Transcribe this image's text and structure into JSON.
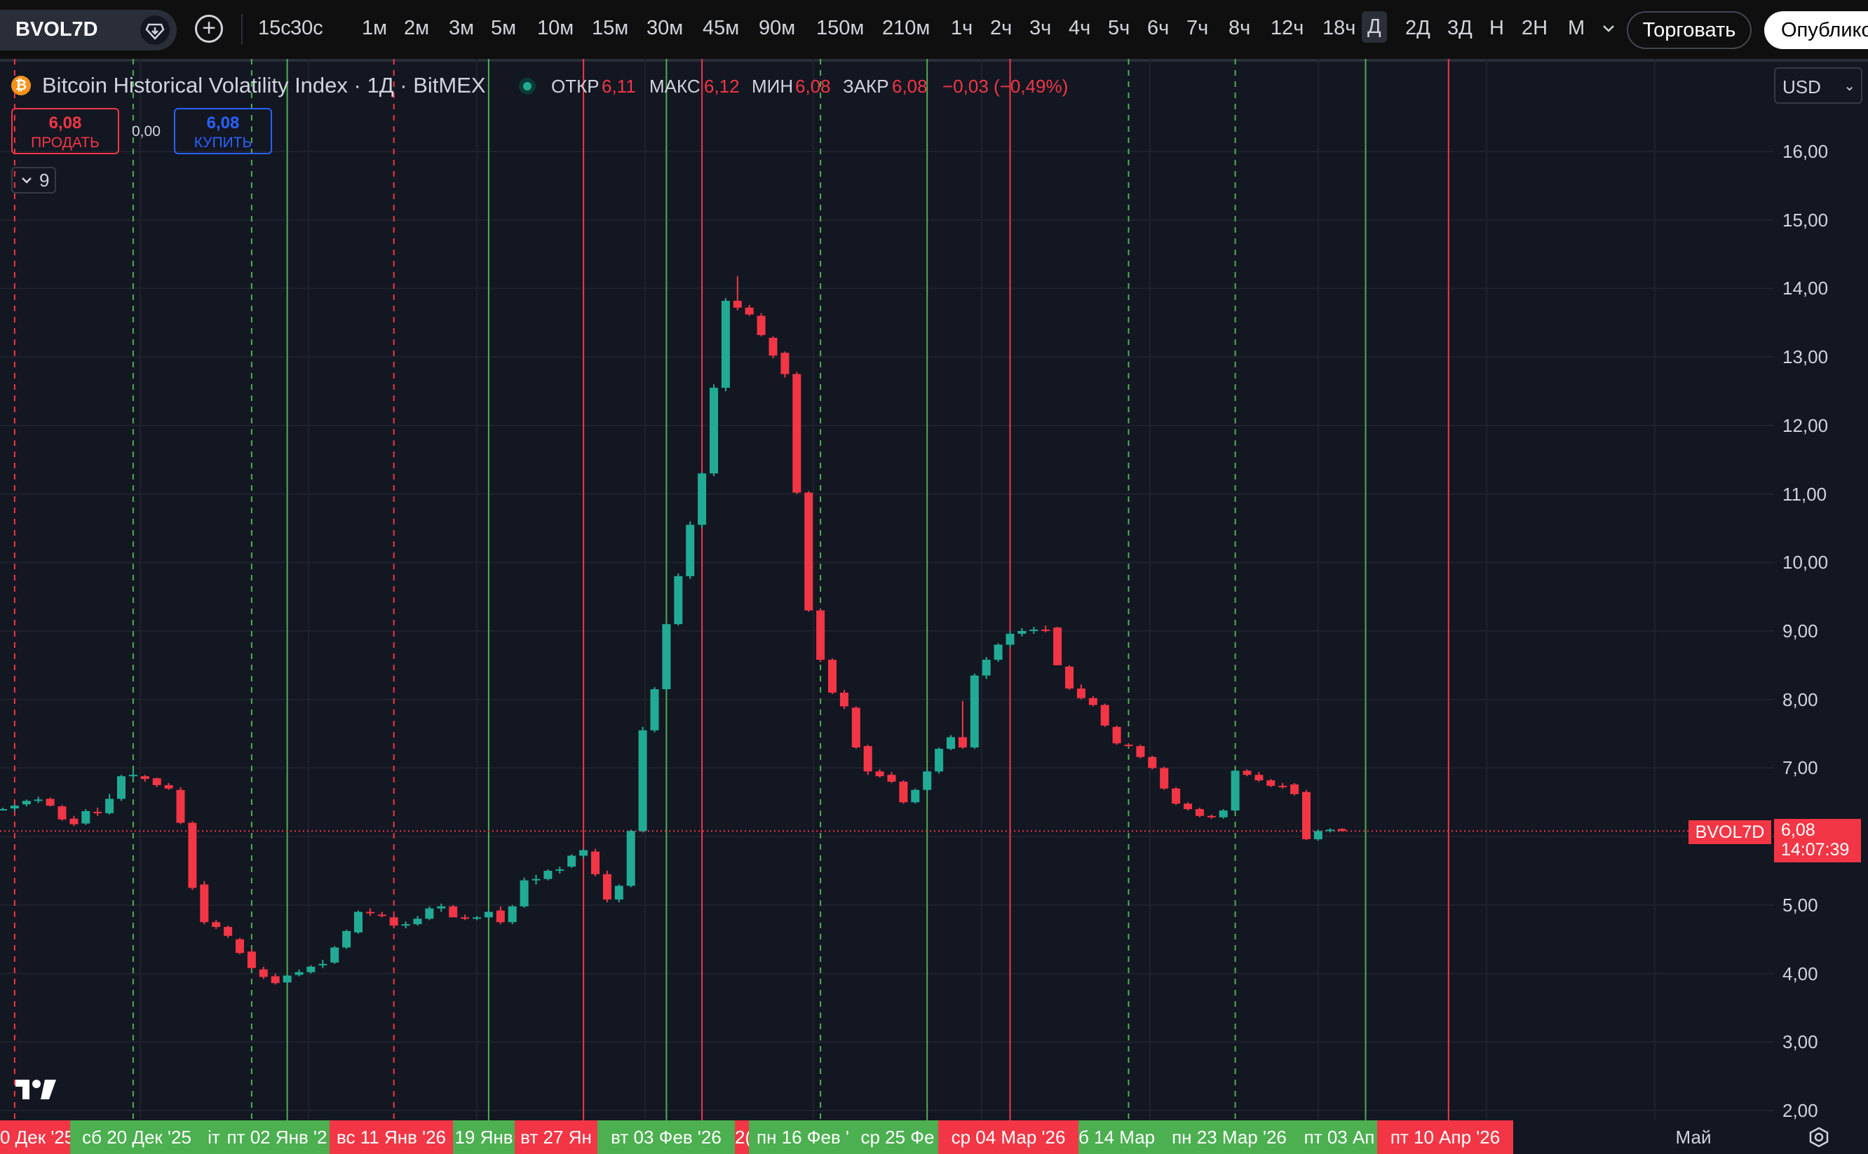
{
  "toolbar": {
    "symbol": "BVOL7D",
    "intervals": [
      "15с",
      "30с",
      "1м",
      "2м",
      "3м",
      "5м",
      "10м",
      "15м",
      "30м",
      "45м",
      "90м",
      "150м",
      "210м",
      "1ч",
      "2ч",
      "3ч",
      "4ч",
      "5ч",
      "6ч",
      "7ч",
      "8ч",
      "12ч",
      "18ч",
      "Д",
      "2Д",
      "3Д",
      "Н",
      "2Н",
      "М"
    ],
    "active_interval": "Д",
    "trade_label": "Торговать",
    "publish_label": "Опублико"
  },
  "legend": {
    "title": "Bitcoin Historical Volatility Index · 1Д · BitMEX",
    "open_label": "ОТКР",
    "open": "6,11",
    "high_label": "МАКС",
    "high": "6,12",
    "low_label": "МИН",
    "low": "6,08",
    "close_label": "ЗАКР",
    "close": "6,08",
    "change": "−0,03 (−0,49%)"
  },
  "trade_panel": {
    "sell_price": "6,08",
    "sell_label": "ПРОДАТЬ",
    "spread": "0,00",
    "buy_price": "6,08",
    "buy_label": "КУПИТЬ"
  },
  "indicators_count": "9",
  "price_axis": {
    "currency": "USD",
    "last_symbol": "BVOL7D",
    "last_price": "6,08",
    "countdown": "14:07:39"
  },
  "colors": {
    "up": "#22ab94",
    "down": "#f23645",
    "background": "#131722",
    "vline_green": "#4caf50",
    "vline_red": "#f23645"
  },
  "time_axis": {
    "labels": [
      {
        "text": "0 Дек '25",
        "kind": "down"
      },
      {
        "text": "сб 20 Дек '25",
        "kind": "up"
      },
      {
        "text": "іт",
        "kind": "up"
      },
      {
        "text": "пт 02 Янв '2",
        "kind": "up"
      },
      {
        "text": "вс 11 Янв '26",
        "kind": "down"
      },
      {
        "text": "19 Янв",
        "kind": "up"
      },
      {
        "text": "вт 27 Ян",
        "kind": "down"
      },
      {
        "text": "вт 03 Фев '26",
        "kind": "up"
      },
      {
        "text": "2(",
        "kind": "down"
      },
      {
        "text": "пн 16 Фев '",
        "kind": "up"
      },
      {
        "text": "ср 25 Фе",
        "kind": "up"
      },
      {
        "text": "ср 04 Мар '26",
        "kind": "down"
      },
      {
        "text": "б 14 Мар '",
        "kind": "up"
      },
      {
        "text": "пн 23 Мар '26",
        "kind": "up"
      },
      {
        "text": "пт 03 Ап",
        "kind": "up"
      },
      {
        "text": "пт 10 Апр '26",
        "kind": "down"
      },
      {
        "text": "Май",
        "kind": "plain"
      }
    ]
  },
  "chart_data": {
    "type": "candlestick",
    "title": "Bitcoin Historical Volatility Index · 1Д · BitMEX",
    "y_ticks": [
      "16,00",
      "15,00",
      "14,00",
      "13,00",
      "12,00",
      "11,00",
      "10,00",
      "9,00",
      "8,00",
      "7,00",
      "6,00",
      "5,00",
      "4,00",
      "3,00",
      "2,00"
    ],
    "ylim": [
      1.9,
      16.8
    ],
    "x_range_days": [
      0,
      148
    ],
    "grid": true,
    "last_price": 6.08,
    "candles": [
      [
        0,
        6.4,
        6.42,
        6.38,
        6.4
      ],
      [
        1,
        6.41,
        6.47,
        6.37,
        6.45
      ],
      [
        2,
        6.47,
        6.54,
        6.44,
        6.52
      ],
      [
        3,
        6.53,
        6.58,
        6.49,
        6.54
      ],
      [
        4,
        6.55,
        6.57,
        6.44,
        6.45
      ],
      [
        5,
        6.44,
        6.46,
        6.23,
        6.25
      ],
      [
        6,
        6.26,
        6.3,
        6.15,
        6.18
      ],
      [
        7,
        6.19,
        6.4,
        6.17,
        6.37
      ],
      [
        8,
        6.36,
        6.42,
        6.3,
        6.35
      ],
      [
        9,
        6.34,
        6.62,
        6.32,
        6.55
      ],
      [
        10,
        6.55,
        6.9,
        6.52,
        6.88
      ],
      [
        11,
        6.9,
        6.96,
        6.84,
        6.9
      ],
      [
        12,
        6.88,
        6.9,
        6.8,
        6.84
      ],
      [
        13,
        6.85,
        6.86,
        6.72,
        6.75
      ],
      [
        14,
        6.75,
        6.78,
        6.68,
        6.7
      ],
      [
        15,
        6.68,
        6.72,
        6.18,
        6.2
      ],
      [
        16,
        6.2,
        6.22,
        5.22,
        5.25
      ],
      [
        17,
        5.3,
        5.35,
        4.72,
        4.75
      ],
      [
        18,
        4.75,
        4.78,
        4.65,
        4.68
      ],
      [
        19,
        4.68,
        4.7,
        4.52,
        4.55
      ],
      [
        20,
        4.5,
        4.52,
        4.28,
        4.3
      ],
      [
        21,
        4.32,
        4.36,
        4.06,
        4.08
      ],
      [
        22,
        4.06,
        4.1,
        3.92,
        3.95
      ],
      [
        23,
        3.96,
        4.0,
        3.84,
        3.86
      ],
      [
        24,
        3.87,
        3.98,
        3.85,
        3.97
      ],
      [
        25,
        3.98,
        4.06,
        3.96,
        4.02
      ],
      [
        26,
        4.02,
        4.12,
        4.0,
        4.1
      ],
      [
        27,
        4.12,
        4.2,
        4.08,
        4.14
      ],
      [
        28,
        4.16,
        4.4,
        4.14,
        4.38
      ],
      [
        29,
        4.38,
        4.64,
        4.36,
        4.62
      ],
      [
        30,
        4.6,
        4.92,
        4.58,
        4.9
      ],
      [
        31,
        4.9,
        4.95,
        4.84,
        4.88
      ],
      [
        32,
        4.86,
        4.9,
        4.82,
        4.84
      ],
      [
        33,
        4.82,
        4.84,
        4.66,
        4.7
      ],
      [
        34,
        4.7,
        4.76,
        4.66,
        4.72
      ],
      [
        35,
        4.72,
        4.84,
        4.7,
        4.8
      ],
      [
        36,
        4.8,
        4.98,
        4.78,
        4.95
      ],
      [
        37,
        4.95,
        5.02,
        4.9,
        4.98
      ],
      [
        38,
        4.98,
        5.0,
        4.86,
        4.82
      ],
      [
        39,
        4.82,
        4.86,
        4.78,
        4.8
      ],
      [
        40,
        4.8,
        4.84,
        4.78,
        4.82
      ],
      [
        41,
        4.82,
        4.92,
        4.78,
        4.9
      ],
      [
        42,
        4.92,
        4.98,
        4.72,
        4.75
      ],
      [
        43,
        4.75,
        5.0,
        4.72,
        4.98
      ],
      [
        44,
        4.98,
        5.4,
        4.96,
        5.36
      ],
      [
        45,
        5.36,
        5.44,
        5.3,
        5.38
      ],
      [
        46,
        5.38,
        5.52,
        5.36,
        5.5
      ],
      [
        47,
        5.5,
        5.56,
        5.46,
        5.52
      ],
      [
        48,
        5.56,
        5.74,
        5.54,
        5.72
      ],
      [
        49,
        5.72,
        5.82,
        5.68,
        5.8
      ],
      [
        50,
        5.78,
        5.82,
        5.42,
        5.45
      ],
      [
        51,
        5.45,
        5.5,
        5.04,
        5.08
      ],
      [
        52,
        5.08,
        5.3,
        5.04,
        5.28
      ],
      [
        53,
        5.28,
        6.1,
        5.26,
        6.08
      ],
      [
        54,
        6.08,
        7.6,
        6.06,
        7.55
      ],
      [
        55,
        7.55,
        8.18,
        7.52,
        8.15
      ],
      [
        56,
        8.15,
        9.12,
        8.12,
        9.1
      ],
      [
        57,
        9.1,
        9.84,
        9.08,
        9.8
      ],
      [
        58,
        9.8,
        10.6,
        9.76,
        10.55
      ],
      [
        59,
        10.55,
        11.32,
        10.5,
        11.3
      ],
      [
        60,
        11.3,
        12.6,
        11.26,
        12.55
      ],
      [
        61,
        12.55,
        13.86,
        12.5,
        13.82
      ],
      [
        62,
        13.82,
        14.18,
        13.68,
        13.72
      ],
      [
        63,
        13.72,
        13.76,
        13.6,
        13.62
      ],
      [
        64,
        13.6,
        13.64,
        13.3,
        13.32
      ],
      [
        65,
        13.28,
        13.3,
        12.98,
        13.02
      ],
      [
        66,
        13.06,
        13.08,
        12.7,
        12.75
      ],
      [
        67,
        12.75,
        12.78,
        11.0,
        11.02
      ],
      [
        68,
        11.02,
        11.04,
        9.28,
        9.3
      ],
      [
        69,
        9.3,
        9.32,
        8.55,
        8.58
      ],
      [
        70,
        8.58,
        8.6,
        8.08,
        8.1
      ],
      [
        71,
        8.1,
        8.14,
        7.86,
        7.9
      ],
      [
        72,
        7.88,
        7.9,
        7.28,
        7.3
      ],
      [
        73,
        7.32,
        7.34,
        6.9,
        6.95
      ],
      [
        74,
        6.95,
        6.98,
        6.86,
        6.88
      ],
      [
        75,
        6.9,
        6.94,
        6.78,
        6.8
      ],
      [
        76,
        6.8,
        6.82,
        6.48,
        6.5
      ],
      [
        77,
        6.5,
        6.7,
        6.48,
        6.68
      ],
      [
        78,
        6.68,
        6.98,
        6.66,
        6.95
      ],
      [
        79,
        6.95,
        7.3,
        6.92,
        7.28
      ],
      [
        80,
        7.28,
        7.48,
        7.26,
        7.45
      ],
      [
        81,
        7.45,
        7.98,
        7.28,
        7.3
      ],
      [
        82,
        7.3,
        8.38,
        7.28,
        8.35
      ],
      [
        83,
        8.35,
        8.62,
        8.3,
        8.58
      ],
      [
        84,
        8.58,
        8.82,
        8.55,
        8.8
      ],
      [
        85,
        8.8,
        9.0,
        8.76,
        8.96
      ],
      [
        86,
        8.96,
        9.04,
        8.92,
        9.0
      ],
      [
        87,
        9.0,
        9.06,
        8.96,
        9.02
      ],
      [
        88,
        9.02,
        9.08,
        8.98,
        9.0
      ],
      [
        89,
        9.05,
        9.06,
        8.5,
        8.5
      ],
      [
        90,
        8.48,
        8.5,
        8.14,
        8.16
      ],
      [
        91,
        8.16,
        8.22,
        8.0,
        8.02
      ],
      [
        92,
        8.02,
        8.05,
        7.9,
        7.92
      ],
      [
        93,
        7.92,
        7.94,
        7.6,
        7.62
      ],
      [
        94,
        7.6,
        7.62,
        7.34,
        7.36
      ],
      [
        95,
        7.34,
        7.36,
        7.3,
        7.32
      ],
      [
        96,
        7.32,
        7.34,
        7.14,
        7.16
      ],
      [
        97,
        7.16,
        7.18,
        6.98,
        7.0
      ],
      [
        98,
        7.0,
        7.02,
        6.68,
        6.7
      ],
      [
        99,
        6.7,
        6.72,
        6.46,
        6.48
      ],
      [
        100,
        6.48,
        6.5,
        6.38,
        6.4
      ],
      [
        101,
        6.4,
        6.42,
        6.28,
        6.3
      ],
      [
        102,
        6.3,
        6.32,
        6.26,
        6.28
      ],
      [
        103,
        6.28,
        6.4,
        6.26,
        6.38
      ],
      [
        104,
        6.38,
        6.98,
        6.36,
        6.96
      ],
      [
        105,
        6.96,
        6.98,
        6.88,
        6.9
      ],
      [
        106,
        6.9,
        6.94,
        6.8,
        6.82
      ],
      [
        107,
        6.82,
        6.84,
        6.72,
        6.74
      ],
      [
        108,
        6.74,
        6.78,
        6.7,
        6.72
      ],
      [
        109,
        6.76,
        6.78,
        6.6,
        6.62
      ],
      [
        110,
        6.65,
        6.68,
        5.95,
        5.96
      ],
      [
        111,
        5.96,
        6.1,
        5.94,
        6.08
      ],
      [
        112,
        6.08,
        6.12,
        6.06,
        6.1
      ],
      [
        113,
        6.11,
        6.12,
        6.08,
        6.08
      ]
    ],
    "vertical_lines": [
      {
        "day": 1,
        "color": "red",
        "style": "dashed"
      },
      {
        "day": 11,
        "color": "green",
        "style": "dashed"
      },
      {
        "day": 21,
        "color": "green",
        "style": "dashed"
      },
      {
        "day": 24,
        "color": "green",
        "style": "solid"
      },
      {
        "day": 33,
        "color": "red",
        "style": "dashed"
      },
      {
        "day": 41,
        "color": "green",
        "style": "solid"
      },
      {
        "day": 49,
        "color": "red",
        "style": "solid"
      },
      {
        "day": 56,
        "color": "green",
        "style": "solid"
      },
      {
        "day": 59,
        "color": "red",
        "style": "solid"
      },
      {
        "day": 69,
        "color": "green",
        "style": "dashed"
      },
      {
        "day": 78,
        "color": "green",
        "style": "solid"
      },
      {
        "day": 85,
        "color": "red",
        "style": "solid"
      },
      {
        "day": 95,
        "color": "green",
        "style": "dashed"
      },
      {
        "day": 104,
        "color": "green",
        "style": "dashed"
      },
      {
        "day": 115,
        "color": "green",
        "style": "solid"
      },
      {
        "day": 122,
        "color": "red",
        "style": "solid"
      }
    ]
  }
}
